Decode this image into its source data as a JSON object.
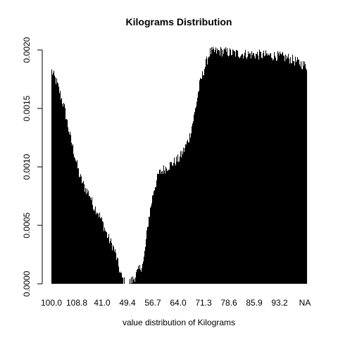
{
  "chart_data": {
    "type": "bar",
    "title": "Kilograms Distribution",
    "xlabel": "value distribution of Kilograms",
    "ylabel": "",
    "ylim": [
      0,
      0.002
    ],
    "yticks": [
      "0.0000",
      "0.0005",
      "0.0010",
      "0.0015",
      "0.0020"
    ],
    "ytick_values": [
      0,
      0.0005,
      0.001,
      0.0015,
      0.002
    ],
    "categories": [
      "100.0",
      "108.8",
      "41.0",
      "49.4",
      "56.7",
      "64.0",
      "71.3",
      "78.6",
      "85.9",
      "93.2",
      "NA"
    ],
    "profile": [
      [
        0.0,
        0.00182
      ],
      [
        0.02,
        0.00172
      ],
      [
        0.05,
        0.0015
      ],
      [
        0.07,
        0.00128
      ],
      [
        0.09,
        0.0011
      ],
      [
        0.11,
        0.00092
      ],
      [
        0.13,
        0.00082
      ],
      [
        0.15,
        0.00076
      ],
      [
        0.16,
        0.00068
      ],
      [
        0.18,
        0.00062
      ],
      [
        0.2,
        0.00052
      ],
      [
        0.22,
        0.0004
      ],
      [
        0.24,
        0.00032
      ],
      [
        0.25,
        0.00026
      ],
      [
        0.27,
        8e-05
      ],
      [
        0.28,
        3e-05
      ],
      [
        0.29,
        0.0
      ],
      [
        0.3,
        0.0
      ],
      [
        0.32,
        4e-05
      ],
      [
        0.34,
        0.00011
      ],
      [
        0.36,
        0.00018
      ],
      [
        0.38,
        0.00055
      ],
      [
        0.4,
        0.0008
      ],
      [
        0.42,
        0.00094
      ],
      [
        0.44,
        0.00098
      ],
      [
        0.46,
        0.00101
      ],
      [
        0.48,
        0.00104
      ],
      [
        0.5,
        0.00107
      ],
      [
        0.52,
        0.00115
      ],
      [
        0.54,
        0.00125
      ],
      [
        0.56,
        0.00145
      ],
      [
        0.58,
        0.0017
      ],
      [
        0.6,
        0.00185
      ],
      [
        0.62,
        0.00198
      ],
      [
        0.66,
        0.00199
      ],
      [
        0.72,
        0.00197
      ],
      [
        0.8,
        0.00196
      ],
      [
        0.88,
        0.00195
      ],
      [
        0.93,
        0.00193
      ],
      [
        0.97,
        0.00189
      ],
      [
        1.0,
        0.00186
      ]
    ]
  }
}
